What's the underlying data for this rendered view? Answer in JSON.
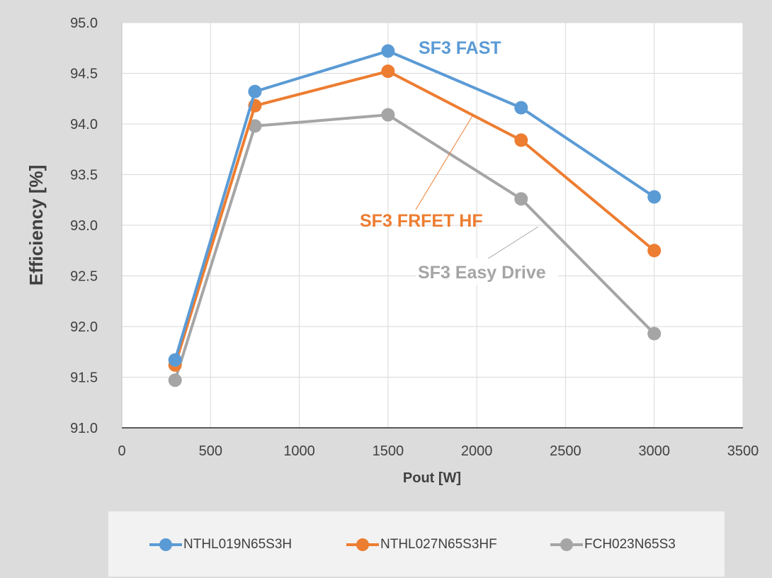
{
  "chart_data": {
    "type": "line",
    "title": "",
    "xlabel": "Pout [W]",
    "ylabel": "Efficiency [%]",
    "xlim": [
      0,
      3500
    ],
    "ylim": [
      91.0,
      95.0
    ],
    "x_ticks": [
      "0",
      "500",
      "1000",
      "1500",
      "2000",
      "2500",
      "3000",
      "3500"
    ],
    "y_ticks": [
      "91.0",
      "91.5",
      "92.0",
      "92.5",
      "93.0",
      "93.5",
      "94.0",
      "94.5",
      "95.0"
    ],
    "grid": true,
    "legend_position": "bottom",
    "x": [
      300,
      750,
      1500,
      2250,
      3000
    ],
    "series": [
      {
        "name": "NTHL019N65S3H",
        "color": "#5b9bd5",
        "values": [
          91.67,
          94.32,
          94.72,
          94.16,
          93.28
        ]
      },
      {
        "name": "NTHL027N65S3HF",
        "color": "#ed7d31",
        "values": [
          91.62,
          94.18,
          94.52,
          93.84,
          92.75
        ]
      },
      {
        "name": "FCH023N65S3",
        "color": "#a5a5a5",
        "values": [
          91.47,
          93.98,
          94.09,
          93.26,
          91.93
        ]
      }
    ],
    "annotations": [
      {
        "text": "SF3 FAST",
        "color": "#5b9bd5"
      },
      {
        "text": "SF3 FRFET HF",
        "color": "#ed7d31"
      },
      {
        "text": "SF3 Easy Drive",
        "color": "#a5a5a5"
      }
    ]
  }
}
